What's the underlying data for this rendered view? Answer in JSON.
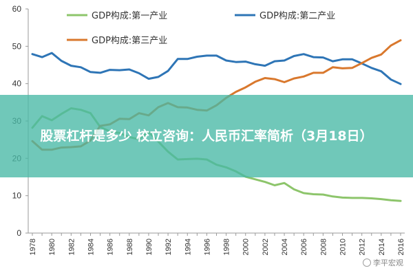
{
  "chart_data": {
    "type": "line",
    "title": "",
    "xlabel": "",
    "ylabel": "",
    "ylim": [
      0,
      60
    ],
    "yticks": [
      0,
      10,
      20,
      30,
      40,
      50,
      60
    ],
    "x": [
      1978,
      1979,
      1980,
      1981,
      1982,
      1983,
      1984,
      1985,
      1986,
      1987,
      1988,
      1989,
      1990,
      1991,
      1992,
      1993,
      1994,
      1995,
      1996,
      1997,
      1998,
      1999,
      2000,
      2001,
      2002,
      2003,
      2004,
      2005,
      2006,
      2007,
      2008,
      2009,
      2010,
      2011,
      2012,
      2013,
      2014,
      2015,
      2016
    ],
    "xtick_labels": [
      "1978",
      "1980",
      "1982",
      "1984",
      "1986",
      "1988",
      "1990",
      "1992",
      "1994",
      "1996",
      "1998",
      "2000",
      "2002",
      "2004",
      "2006",
      "2008",
      "2010",
      "2012",
      "2014",
      "2016"
    ],
    "series": [
      {
        "name": "GDP构成:第一产业",
        "color": "#8dc56b",
        "values": [
          28.2,
          31.3,
          30.2,
          31.9,
          33.4,
          33.0,
          32.1,
          28.4,
          27.2,
          26.8,
          25.7,
          25.1,
          27.1,
          24.5,
          21.8,
          19.7,
          19.8,
          19.9,
          19.7,
          18.3,
          17.6,
          16.5,
          15.1,
          14.4,
          13.7,
          12.8,
          13.4,
          11.7,
          10.7,
          10.4,
          10.3,
          9.8,
          9.5,
          9.4,
          9.4,
          9.3,
          9.1,
          8.8,
          8.6
        ]
      },
      {
        "name": "GDP构成:第二产业",
        "color": "#2e75b6",
        "values": [
          47.9,
          47.1,
          48.2,
          46.1,
          44.8,
          44.4,
          43.1,
          42.9,
          43.7,
          43.6,
          43.8,
          42.8,
          41.3,
          41.8,
          43.4,
          46.6,
          46.6,
          47.2,
          47.5,
          47.5,
          46.2,
          45.8,
          45.9,
          45.2,
          44.8,
          46.0,
          46.2,
          47.4,
          47.9,
          47.1,
          47.0,
          46.0,
          46.5,
          46.5,
          45.4,
          44.2,
          43.3,
          41.1,
          39.9
        ]
      },
      {
        "name": "GDP构成:第三产业",
        "color": "#d9782d",
        "values": [
          24.6,
          22.3,
          22.3,
          22.9,
          23.0,
          23.2,
          24.8,
          28.7,
          29.1,
          30.6,
          30.5,
          32.1,
          31.5,
          33.7,
          34.8,
          33.7,
          33.6,
          33.0,
          32.8,
          34.2,
          36.2,
          37.8,
          39.0,
          40.5,
          41.5,
          41.2,
          40.4,
          41.4,
          41.9,
          42.9,
          42.9,
          44.4,
          44.1,
          44.2,
          45.5,
          46.9,
          47.8,
          50.2,
          51.6
        ]
      }
    ],
    "legend": [
      "GDP构成:第一产业",
      "GDP构成:第二产业",
      "GDP构成:第三产业"
    ],
    "legend_position": "top"
  },
  "overlay": {
    "title": "股票杠杆是多少 校立咨询：人民币汇率简析（3月18日）"
  },
  "watermark": {
    "text": "李平宏观"
  },
  "colors": {
    "axis": "#999999",
    "overlay": "#48b9a5"
  }
}
